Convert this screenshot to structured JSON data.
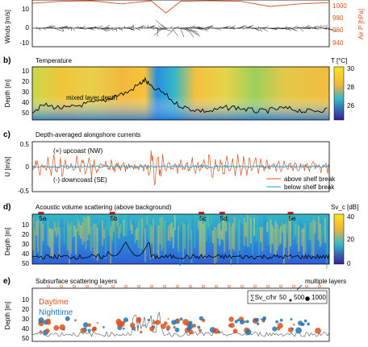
{
  "chart_data": [
    {
      "panel": "a",
      "type": "line",
      "ylabel": "Winds [m/s]",
      "y_ticks": [
        "10",
        "0",
        "-10"
      ],
      "ylabel_right": "Air P [hPa]",
      "y_ticks_right": [
        "1000",
        "980",
        "960",
        "940"
      ],
      "series": [
        {
          "name": "Air P",
          "color": "#d9541e",
          "x": [
            0,
            0.1,
            0.2,
            0.3,
            0.4,
            0.45,
            0.5,
            0.6,
            0.7,
            0.8,
            0.9,
            1.0
          ],
          "values": [
            1005,
            1008,
            1010,
            1004,
            1012,
            990,
            1008,
            1010,
            1008,
            1000,
            1004,
            1006
          ]
        }
      ]
    },
    {
      "panel": "b",
      "type": "heatmap",
      "title": "Temperature",
      "ylabel": "Depth [m]",
      "y_ticks": [
        "10",
        "20",
        "30",
        "40",
        "50"
      ],
      "colorbar_label": "T [°C]",
      "colorbar_ticks": [
        "30",
        "28",
        "26"
      ],
      "annotation": "mixed layer depth",
      "mld": {
        "x": [
          0,
          0.04,
          0.08,
          0.12,
          0.16,
          0.2,
          0.24,
          0.28,
          0.32,
          0.36,
          0.38,
          0.4,
          0.44,
          0.48,
          0.52,
          0.56,
          0.6,
          0.64,
          0.68,
          0.72,
          0.76,
          0.8,
          0.84,
          0.88,
          0.92,
          0.96,
          1.0
        ],
        "values": [
          48,
          42,
          44,
          45,
          42,
          40,
          38,
          33,
          30,
          22,
          18,
          25,
          30,
          40,
          45,
          47,
          48,
          45,
          44,
          46,
          48,
          47,
          45,
          46,
          48,
          47,
          46
        ]
      }
    },
    {
      "panel": "c",
      "type": "line",
      "title": "Depth-averaged alongshore currents",
      "ylabel": "U [m/s]",
      "y_ticks": [
        "0.5",
        "0",
        "-0.5"
      ],
      "annotations": [
        "(+) upcoast (NW)",
        "(-) downcoast (SE)"
      ],
      "series": [
        {
          "name": "above shelf break",
          "color": "#d9541e"
        },
        {
          "name": "below shelf break",
          "color": "#2a9fd6"
        }
      ]
    },
    {
      "panel": "d",
      "type": "heatmap",
      "title": "Acoustic volume scattering (above background)",
      "ylabel": "Depth [m]",
      "y_ticks": [
        "10",
        "20",
        "30",
        "40",
        "50"
      ],
      "colorbar_label": "Sv_c [dB]",
      "colorbar_ticks": [
        "40",
        "20",
        "0"
      ],
      "markers": [
        {
          "label": "5a",
          "x": 0.02
        },
        {
          "label": "5b",
          "x": 0.26
        },
        {
          "label": "5c",
          "x": 0.56
        },
        {
          "label": "5d",
          "x": 0.63
        },
        {
          "label": "5e",
          "x": 0.86
        }
      ]
    },
    {
      "panel": "e",
      "type": "scatter",
      "title": "Subsurface scattering layers",
      "ylabel": "Depth [m]",
      "y_ticks": [
        "10",
        "20",
        "30",
        "40",
        "50"
      ],
      "annotation": "multiple layers",
      "series": [
        {
          "name": "Daytime",
          "color": "#d9541e"
        },
        {
          "name": "Nighttime",
          "color": "#1f77b4"
        }
      ],
      "size_legend": {
        "label": "∑Sv_c/hr",
        "values": [
          "50",
          "500",
          "1000"
        ]
      }
    }
  ]
}
